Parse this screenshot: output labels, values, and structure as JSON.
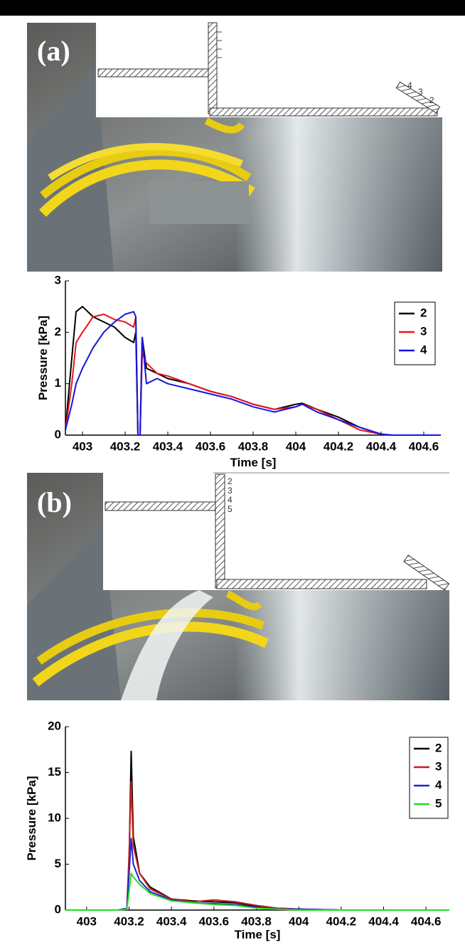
{
  "panels": [
    {
      "label": "(a)",
      "sensor_labels": [
        "4",
        "3",
        "2"
      ]
    },
    {
      "label": "(b)",
      "sensor_labels": [
        "2",
        "3",
        "4",
        "5"
      ]
    }
  ],
  "chart_data": [
    {
      "type": "line",
      "xlabel": "Time [s]",
      "ylabel": "Pressure [kPa]",
      "x": [
        402.92,
        402.95,
        402.97,
        403.0,
        403.05,
        403.1,
        403.15,
        403.2,
        403.24,
        403.25,
        403.26,
        403.27,
        403.28,
        403.3,
        403.35,
        403.4,
        403.5,
        403.6,
        403.7,
        403.8,
        403.9,
        404.0,
        404.03,
        404.1,
        404.2,
        404.3,
        404.4,
        404.45,
        404.5,
        404.68
      ],
      "series": [
        {
          "name": "2",
          "color": "#000000",
          "values": [
            0.1,
            1.5,
            2.4,
            2.5,
            2.3,
            2.2,
            2.1,
            1.9,
            1.8,
            2.0,
            0,
            0,
            1.9,
            1.3,
            1.2,
            1.1,
            1.0,
            0.85,
            0.75,
            0.6,
            0.5,
            0.6,
            0.62,
            0.5,
            0.35,
            0.15,
            0.02,
            0,
            0,
            0
          ]
        },
        {
          "name": "3",
          "color": "#e8141b",
          "values": [
            0.1,
            1.0,
            1.8,
            2.0,
            2.3,
            2.35,
            2.25,
            2.2,
            2.1,
            2.3,
            0,
            0,
            1.6,
            1.4,
            1.2,
            1.15,
            1.0,
            0.85,
            0.75,
            0.6,
            0.5,
            0.55,
            0.6,
            0.5,
            0.3,
            0.1,
            0.02,
            0,
            0,
            0
          ]
        },
        {
          "name": "4",
          "color": "#1414e6",
          "values": [
            0.1,
            0.6,
            1.0,
            1.3,
            1.7,
            2.0,
            2.2,
            2.35,
            2.4,
            2.3,
            0,
            0,
            1.9,
            1.0,
            1.1,
            1.0,
            0.9,
            0.8,
            0.7,
            0.55,
            0.45,
            0.55,
            0.6,
            0.45,
            0.3,
            0.15,
            0.02,
            0,
            0,
            0
          ]
        }
      ],
      "xlim": [
        402.92,
        404.68
      ],
      "xticks": [
        403,
        403.2,
        403.4,
        403.6,
        403.8,
        404,
        404.2,
        404.4,
        404.6
      ],
      "ylim": [
        0,
        3
      ],
      "yticks": [
        0,
        1,
        2,
        3
      ],
      "grid": false,
      "legend": "upper right"
    },
    {
      "type": "line",
      "xlabel": "Time [s]",
      "ylabel": "Pressure [kPa]",
      "x": [
        402.9,
        403.15,
        403.19,
        403.2,
        403.21,
        403.22,
        403.25,
        403.3,
        403.4,
        403.5,
        403.6,
        403.7,
        403.8,
        403.9,
        404.0,
        404.2,
        404.71
      ],
      "series": [
        {
          "name": "2",
          "color": "#000000",
          "values": [
            0,
            0,
            0.2,
            5,
            17.3,
            8,
            4,
            2.5,
            1.2,
            1.0,
            0.9,
            0.8,
            0.4,
            0.2,
            0.1,
            0,
            0
          ]
        },
        {
          "name": "3",
          "color": "#c41e1e",
          "values": [
            0,
            0,
            0.2,
            6,
            14,
            7,
            4,
            2.3,
            1.2,
            0.9,
            1.1,
            0.9,
            0.5,
            0.2,
            0.1,
            0,
            0
          ]
        },
        {
          "name": "4",
          "color": "#2222cc",
          "values": [
            0,
            0,
            0.2,
            4,
            7.8,
            5,
            3.2,
            2.0,
            1.1,
            0.8,
            0.7,
            0.6,
            0.3,
            0.1,
            0.1,
            0,
            0
          ]
        },
        {
          "name": "5",
          "color": "#22dd22",
          "values": [
            0,
            0,
            0.1,
            2,
            4,
            3.6,
            2.8,
            1.8,
            1.0,
            0.8,
            0.6,
            0.5,
            0.2,
            0.1,
            0,
            0,
            0
          ]
        }
      ],
      "xlim": [
        402.9,
        404.71
      ],
      "xticks": [
        403,
        403.2,
        403.4,
        403.6,
        403.8,
        404,
        404.2,
        404.4,
        404.6
      ],
      "ylim": [
        0,
        20
      ],
      "yticks": [
        0,
        5,
        10,
        15,
        20
      ],
      "grid": false,
      "legend": "upper right"
    }
  ]
}
